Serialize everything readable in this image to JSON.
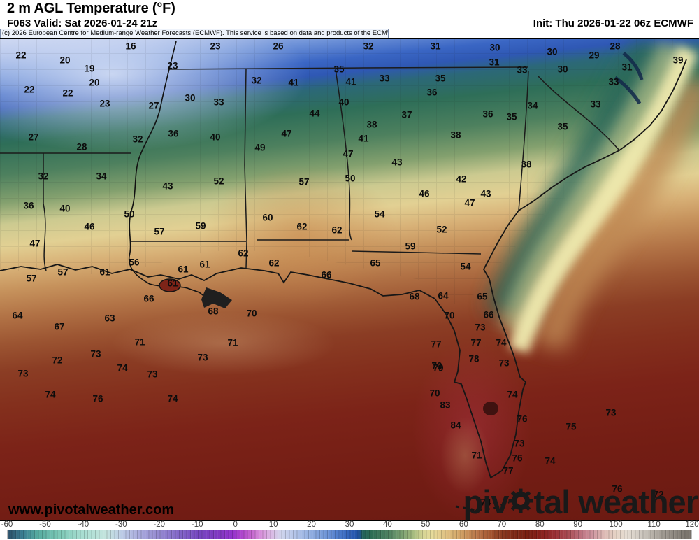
{
  "header": {
    "title": "2 m AGL Temperature (°F)",
    "valid": "F063 Valid: Sat 2026-01-24 21z",
    "init": "Init: Thu 2026-01-22 06z ECMWF",
    "copyright": "(c) 2026 European Centre for Medium-range Weather Forecasts (ECMWF). This service is based on data and products of the ECMWF."
  },
  "watermark": "www.pivotalweather.com",
  "logo": {
    "part1": "piv",
    "part2": "tal weather",
    "gear_icon": "gear replaces letter o"
  },
  "map": {
    "gradient": [
      [
        0.0,
        "#c9d4f0"
      ],
      [
        0.03,
        "#a9bce8"
      ],
      [
        0.065,
        "#6e92d8"
      ],
      [
        0.1,
        "#3a66c4"
      ],
      [
        0.125,
        "#2f58b4"
      ],
      [
        0.15,
        "#2c6878"
      ],
      [
        0.19,
        "#2e6e58"
      ],
      [
        0.245,
        "#4d805e"
      ],
      [
        0.295,
        "#83a06e"
      ],
      [
        0.335,
        "#ccca90"
      ],
      [
        0.375,
        "#e2d093"
      ],
      [
        0.415,
        "#d8b177"
      ],
      [
        0.455,
        "#c6925c"
      ],
      [
        0.5,
        "#b27346"
      ],
      [
        0.55,
        "#9c5532"
      ],
      [
        0.6,
        "#8b3d24"
      ],
      [
        0.66,
        "#84301d"
      ],
      [
        0.74,
        "#7c2318"
      ],
      [
        0.86,
        "#731d14"
      ],
      [
        1.0,
        "#6b1a12"
      ]
    ],
    "labels": [
      [
        22,
        30,
        23
      ],
      [
        16,
        187,
        10
      ],
      [
        23,
        308,
        10
      ],
      [
        26,
        398,
        10
      ],
      [
        32,
        527,
        10
      ],
      [
        31,
        623,
        10
      ],
      [
        30,
        708,
        12
      ],
      [
        30,
        790,
        18
      ],
      [
        28,
        880,
        10
      ],
      [
        29,
        850,
        23
      ],
      [
        39,
        970,
        30
      ],
      [
        20,
        93,
        30
      ],
      [
        19,
        128,
        42
      ],
      [
        20,
        135,
        62
      ],
      [
        22,
        42,
        72
      ],
      [
        22,
        97,
        77
      ],
      [
        23,
        150,
        92
      ],
      [
        23,
        247,
        38
      ],
      [
        35,
        485,
        43
      ],
      [
        32,
        367,
        59
      ],
      [
        41,
        420,
        62
      ],
      [
        41,
        502,
        61
      ],
      [
        33,
        550,
        56
      ],
      [
        35,
        630,
        56
      ],
      [
        31,
        707,
        33
      ],
      [
        33,
        747,
        44
      ],
      [
        30,
        805,
        43
      ],
      [
        31,
        897,
        40
      ],
      [
        33,
        878,
        61
      ],
      [
        30,
        272,
        84
      ],
      [
        33,
        313,
        90
      ],
      [
        27,
        220,
        95
      ],
      [
        36,
        618,
        76
      ],
      [
        40,
        492,
        90
      ],
      [
        44,
        450,
        106
      ],
      [
        37,
        582,
        108
      ],
      [
        38,
        532,
        122
      ],
      [
        38,
        652,
        137
      ],
      [
        33,
        852,
        93
      ],
      [
        34,
        762,
        95
      ],
      [
        36,
        698,
        107
      ],
      [
        35,
        732,
        111
      ],
      [
        35,
        805,
        125
      ],
      [
        27,
        48,
        140
      ],
      [
        36,
        248,
        135
      ],
      [
        40,
        308,
        140
      ],
      [
        32,
        197,
        143
      ],
      [
        28,
        117,
        154
      ],
      [
        47,
        410,
        135
      ],
      [
        41,
        520,
        142
      ],
      [
        49,
        372,
        155
      ],
      [
        47,
        498,
        164
      ],
      [
        43,
        568,
        176
      ],
      [
        38,
        753,
        179
      ],
      [
        32,
        62,
        196
      ],
      [
        34,
        145,
        196
      ],
      [
        43,
        240,
        210
      ],
      [
        52,
        313,
        203
      ],
      [
        57,
        435,
        204
      ],
      [
        50,
        501,
        199
      ],
      [
        42,
        660,
        200
      ],
      [
        46,
        607,
        221
      ],
      [
        43,
        695,
        221
      ],
      [
        47,
        672,
        234
      ],
      [
        36,
        41,
        238
      ],
      [
        40,
        93,
        242
      ],
      [
        50,
        185,
        250
      ],
      [
        46,
        128,
        268
      ],
      [
        57,
        228,
        275
      ],
      [
        59,
        287,
        267
      ],
      [
        60,
        383,
        255
      ],
      [
        54,
        543,
        250
      ],
      [
        62,
        432,
        268
      ],
      [
        62,
        482,
        273
      ],
      [
        52,
        632,
        272
      ],
      [
        59,
        587,
        296
      ],
      [
        47,
        50,
        292
      ],
      [
        56,
        192,
        319
      ],
      [
        61,
        262,
        329
      ],
      [
        61,
        293,
        322
      ],
      [
        57,
        90,
        333
      ],
      [
        57,
        45,
        342
      ],
      [
        61,
        150,
        333
      ],
      [
        61,
        247,
        349
      ],
      [
        62,
        348,
        306
      ],
      [
        62,
        392,
        320
      ],
      [
        65,
        537,
        320
      ],
      [
        54,
        666,
        325
      ],
      [
        66,
        467,
        337
      ],
      [
        66,
        213,
        371
      ],
      [
        68,
        305,
        389
      ],
      [
        64,
        25,
        395
      ],
      [
        63,
        157,
        399
      ],
      [
        67,
        85,
        411
      ],
      [
        68,
        593,
        368
      ],
      [
        64,
        634,
        367
      ],
      [
        65,
        690,
        368
      ],
      [
        70,
        360,
        392
      ],
      [
        70,
        643,
        395
      ],
      [
        66,
        699,
        394
      ],
      [
        73,
        687,
        412
      ],
      [
        71,
        200,
        433
      ],
      [
        71,
        333,
        434
      ],
      [
        77,
        624,
        436
      ],
      [
        77,
        681,
        434
      ],
      [
        74,
        717,
        434
      ],
      [
        72,
        82,
        459
      ],
      [
        73,
        137,
        450
      ],
      [
        73,
        290,
        455
      ],
      [
        74,
        175,
        470
      ],
      [
        78,
        678,
        457
      ],
      [
        73,
        721,
        463
      ],
      [
        79,
        627,
        470
      ],
      [
        73,
        33,
        478
      ],
      [
        73,
        218,
        479
      ],
      [
        74,
        72,
        508
      ],
      [
        76,
        140,
        514
      ],
      [
        74,
        247,
        514
      ],
      [
        70,
        625,
        467
      ],
      [
        70,
        622,
        506
      ],
      [
        83,
        637,
        523
      ],
      [
        84,
        652,
        552
      ],
      [
        74,
        733,
        508
      ],
      [
        73,
        874,
        534
      ],
      [
        76,
        747,
        543
      ],
      [
        75,
        817,
        554
      ],
      [
        73,
        743,
        578
      ],
      [
        71,
        682,
        595
      ],
      [
        76,
        740,
        599
      ],
      [
        74,
        787,
        603
      ],
      [
        77,
        727,
        617
      ],
      [
        76,
        883,
        643
      ],
      [
        72,
        942,
        651
      ],
      [
        74,
        695,
        662
      ]
    ]
  },
  "colorbar": {
    "min": -60,
    "max": 120,
    "ticks": [
      "-60",
      "-50",
      "-40",
      "-30",
      "-20",
      "-10",
      "0",
      "10",
      "20",
      "30",
      "40",
      "50",
      "60",
      "70",
      "80",
      "90",
      "100",
      "110",
      "120"
    ],
    "stops": [
      [
        0.0,
        "#2a4f68"
      ],
      [
        0.022,
        "#3a7e92"
      ],
      [
        0.044,
        "#55ab9f"
      ],
      [
        0.078,
        "#7fcab8"
      ],
      [
        0.111,
        "#a9ded2"
      ],
      [
        0.144,
        "#c4e4de"
      ],
      [
        0.167,
        "#bccbe6"
      ],
      [
        0.194,
        "#a8a8dc"
      ],
      [
        0.222,
        "#9488d0"
      ],
      [
        0.25,
        "#8266c8"
      ],
      [
        0.278,
        "#7647c0"
      ],
      [
        0.306,
        "#7e38c0"
      ],
      [
        0.328,
        "#9232cc"
      ],
      [
        0.339,
        "#a83ecc"
      ],
      [
        0.356,
        "#c564d0"
      ],
      [
        0.372,
        "#d995dc"
      ],
      [
        0.389,
        "#d9c0e6"
      ],
      [
        0.4,
        "#cfd4ec"
      ],
      [
        0.417,
        "#b9c8ea"
      ],
      [
        0.439,
        "#97b2e2"
      ],
      [
        0.467,
        "#6e94d6"
      ],
      [
        0.489,
        "#4474c8"
      ],
      [
        0.506,
        "#2858b0"
      ],
      [
        0.514,
        "#1f52a0"
      ],
      [
        0.519,
        "#20605a"
      ],
      [
        0.533,
        "#2e6e54"
      ],
      [
        0.556,
        "#4c8060"
      ],
      [
        0.578,
        "#7da271"
      ],
      [
        0.594,
        "#a8bc80"
      ],
      [
        0.608,
        "#d6d493"
      ],
      [
        0.622,
        "#e8dc9c"
      ],
      [
        0.639,
        "#e0c384"
      ],
      [
        0.656,
        "#d6ac6e"
      ],
      [
        0.672,
        "#c88f58"
      ],
      [
        0.689,
        "#b87247"
      ],
      [
        0.706,
        "#a35530"
      ],
      [
        0.722,
        "#8d3d22"
      ],
      [
        0.739,
        "#7e2a17"
      ],
      [
        0.761,
        "#7a1f12"
      ],
      [
        0.778,
        "#871f1a"
      ],
      [
        0.8,
        "#992e34"
      ],
      [
        0.822,
        "#ab4e56"
      ],
      [
        0.839,
        "#bd7280"
      ],
      [
        0.856,
        "#cf96a0"
      ],
      [
        0.872,
        "#dcb9b4"
      ],
      [
        0.889,
        "#e5d2c4"
      ],
      [
        0.906,
        "#e5dcd2"
      ],
      [
        0.928,
        "#cdc7bf"
      ],
      [
        0.95,
        "#aca69e"
      ],
      [
        0.972,
        "#918b83"
      ],
      [
        1.0,
        "#767068"
      ]
    ]
  }
}
